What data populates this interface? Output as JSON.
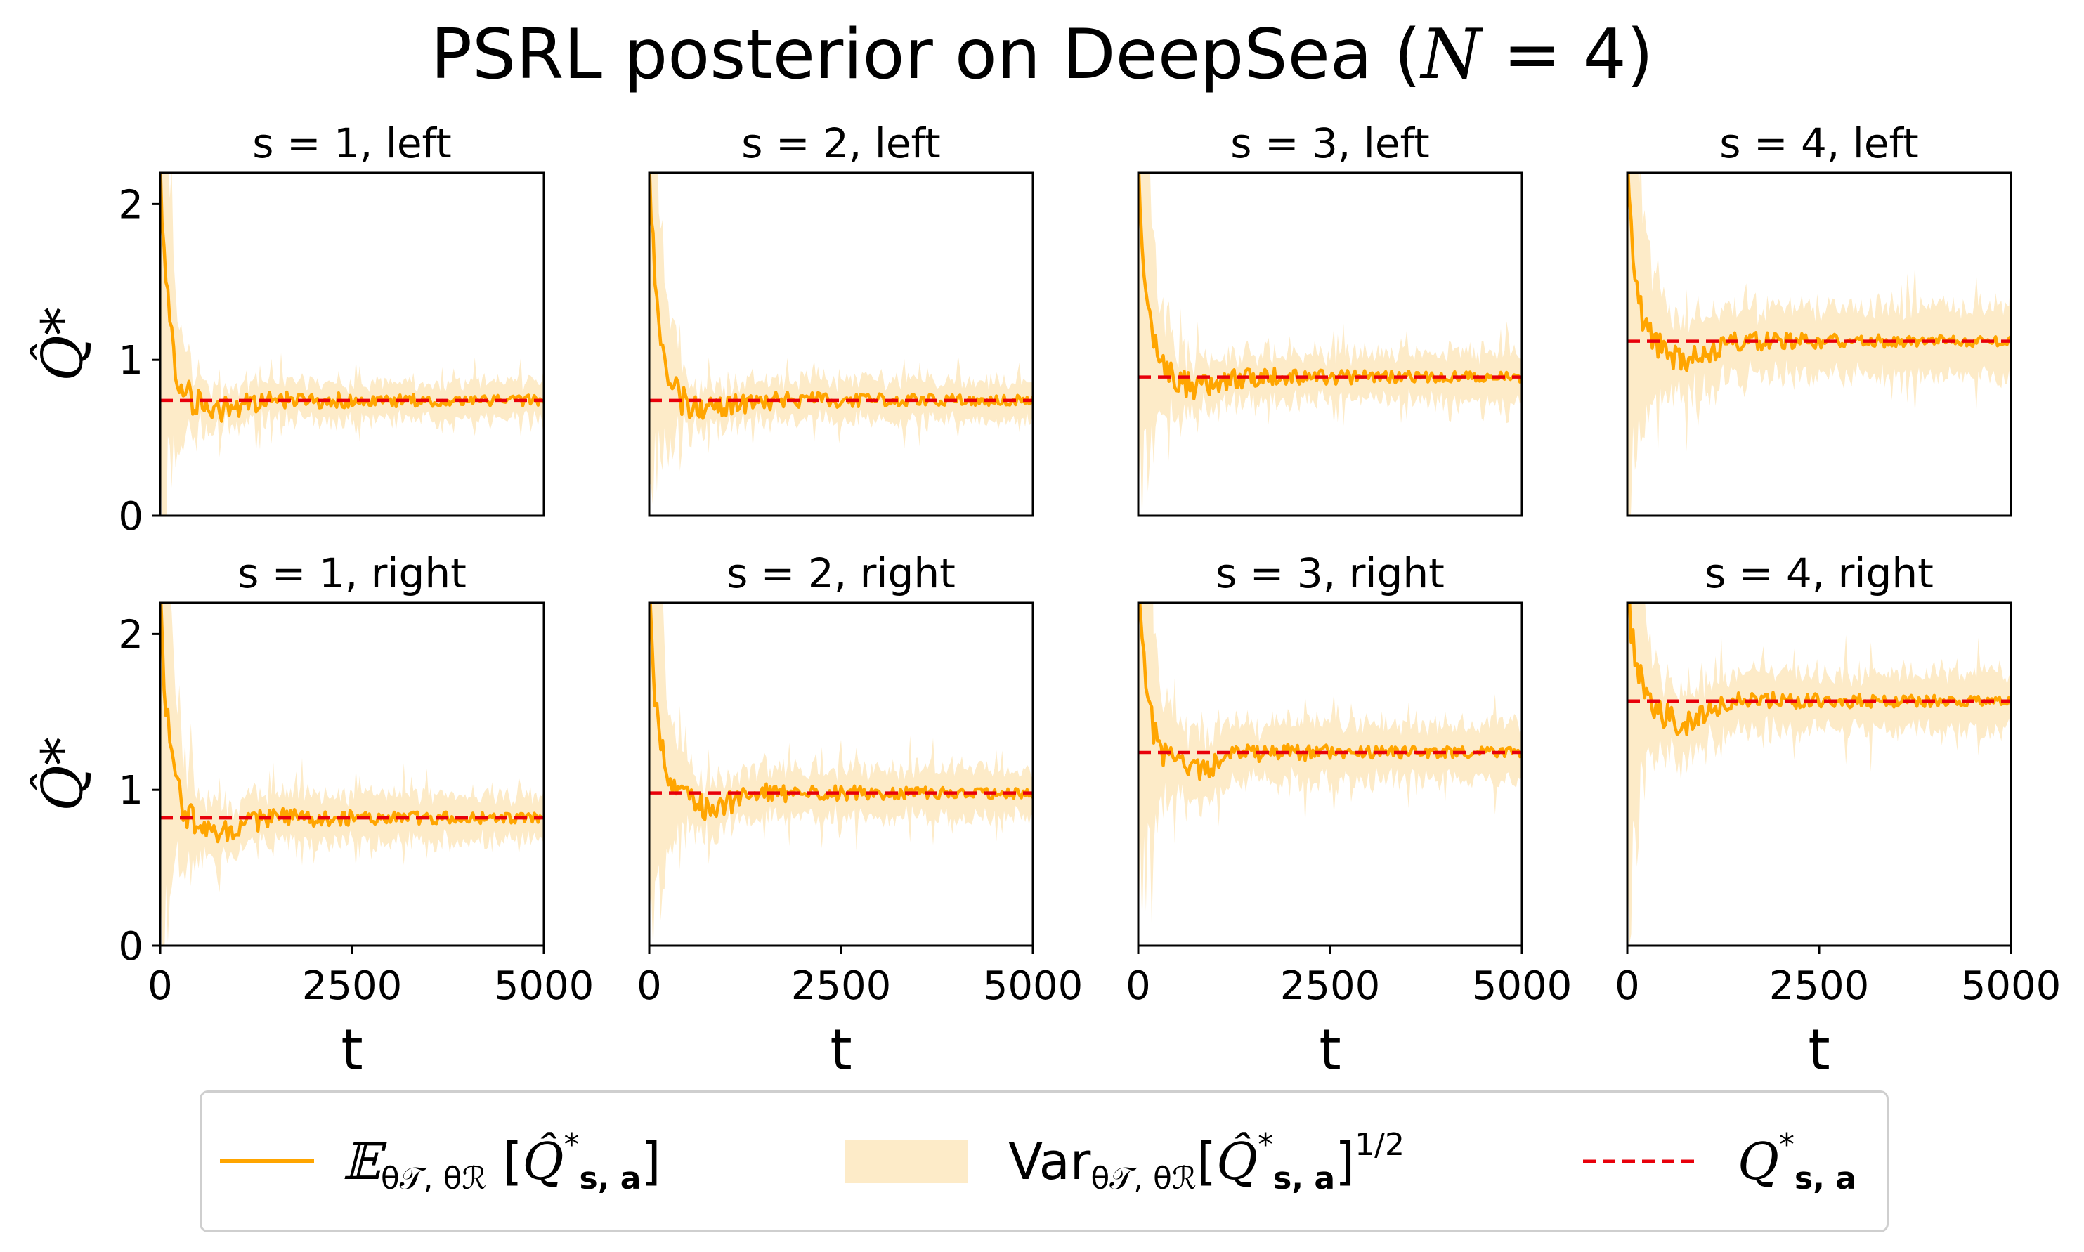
{
  "figure": {
    "title_prefix": "PSRL posterior on DeepSea (",
    "title_var": "N",
    "title_suffix": " = 4)"
  },
  "colors": {
    "mean": "#ffa500",
    "band": "#fdebc8",
    "truth": "#e8000b",
    "axis": "#000000"
  },
  "legend": {
    "mean_label": "𝔼θ𝒯, θℛ [Q̂*s, a]",
    "std_label": "Varθ𝒯, θℛ[Q̂*s, a]1/2",
    "truth_label": "Q*s, a"
  },
  "chart_data": {
    "type": "line",
    "xlabel": "t",
    "ylabel": "Q̂*",
    "xlim": [
      0,
      5000
    ],
    "ylim": [
      0,
      2.2
    ],
    "xticks": [
      0,
      2500,
      5000
    ],
    "yticks": [
      0,
      1,
      2
    ],
    "grid": false,
    "legend_position": "bottom",
    "series_names": [
      "𝔼θ𝒯, θℛ [Q̂*s, a]",
      "Varθ𝒯, θℛ[Q̂*s, a]1/2",
      "Q*s, a"
    ],
    "panels": [
      {
        "title": "s = 1, left",
        "true_q": 0.74,
        "start": 2.3,
        "dip": 0.06,
        "band_start": 2.2,
        "band_end": 0.12
      },
      {
        "title": "s = 2, left",
        "true_q": 0.74,
        "start": 2.3,
        "dip": 0.05,
        "band_start": 2.2,
        "band_end": 0.13
      },
      {
        "title": "s = 3, left",
        "true_q": 0.89,
        "start": 2.3,
        "dip": 0.06,
        "band_start": 2.2,
        "band_end": 0.15
      },
      {
        "title": "s = 4, left",
        "true_q": 1.12,
        "start": 2.3,
        "dip": 0.12,
        "band_start": 2.2,
        "band_end": 0.22
      },
      {
        "title": "s = 1, right",
        "true_q": 0.82,
        "start": 2.3,
        "dip": 0.08,
        "band_start": 2.2,
        "band_end": 0.15
      },
      {
        "title": "s = 2, right",
        "true_q": 0.98,
        "start": 2.3,
        "dip": 0.1,
        "band_start": 2.2,
        "band_end": 0.15
      },
      {
        "title": "s = 3, right",
        "true_q": 1.24,
        "start": 2.3,
        "dip": 0.1,
        "band_start": 2.2,
        "band_end": 0.18
      },
      {
        "title": "s = 4, right",
        "true_q": 1.57,
        "start": 2.3,
        "dip": 0.14,
        "band_start": 2.2,
        "band_end": 0.18
      }
    ]
  }
}
